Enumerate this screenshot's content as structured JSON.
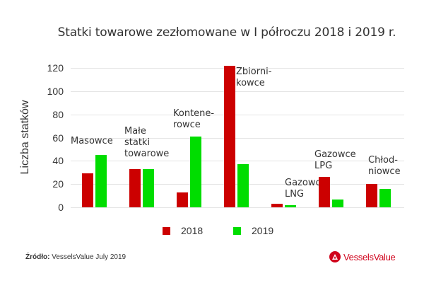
{
  "title": "Statki towarowe zezłomowane w I półroczu 2018 i 2019 r.",
  "ylabel": "Liczba statków",
  "yticks": [
    "0",
    "20",
    "40",
    "60",
    "80",
    "100",
    "120"
  ],
  "legend": [
    {
      "label": "2018",
      "color": "#cc0000"
    },
    {
      "label": "2019",
      "color": "#00dd00"
    }
  ],
  "categories": [
    {
      "label": "Masowce",
      "v2018": 29,
      "v2019": 45
    },
    {
      "label": "Małe\nstatki\ntowarowe",
      "v2018": 33,
      "v2019": 33
    },
    {
      "label": "Kontene-\nrowce",
      "v2018": 13,
      "v2019": 61
    },
    {
      "label": "Zbiorni-\nkowce",
      "v2018": 122,
      "v2019": 37
    },
    {
      "label": "Gazowce\nLNG",
      "v2018": 3,
      "v2019": 2
    },
    {
      "label": "Gazowce\nLPG",
      "v2018": 26,
      "v2019": 7
    },
    {
      "label": "Chłod-\nniowce",
      "v2018": 20,
      "v2019": 16
    }
  ],
  "source": {
    "prefix": "Źródło:",
    "text": " VesselsValue July 2019"
  },
  "logo": {
    "text": "VesselsValue",
    "color": "#d0021b"
  },
  "chart_data": {
    "type": "bar",
    "title": "Statki towarowe zezłomowane w I półroczu 2018 i 2019 r.",
    "xlabel": "",
    "ylabel": "Liczba statków",
    "ylim": [
      0,
      120
    ],
    "yticks": [
      0,
      20,
      40,
      60,
      80,
      100,
      120
    ],
    "grid": true,
    "legend_position": "bottom",
    "categories": [
      "Masowce",
      "Małe statki towarowe",
      "Kontenerowce",
      "Zbiornikowce",
      "Gazowce LNG",
      "Gazowce LPG",
      "Chłodniowce"
    ],
    "series": [
      {
        "name": "2018",
        "color": "#cc0000",
        "values": [
          29,
          33,
          13,
          122,
          3,
          26,
          20
        ]
      },
      {
        "name": "2019",
        "color": "#00dd00",
        "values": [
          45,
          33,
          61,
          37,
          2,
          7,
          16
        ]
      }
    ],
    "source": "Źródło: VesselsValue July 2019"
  }
}
